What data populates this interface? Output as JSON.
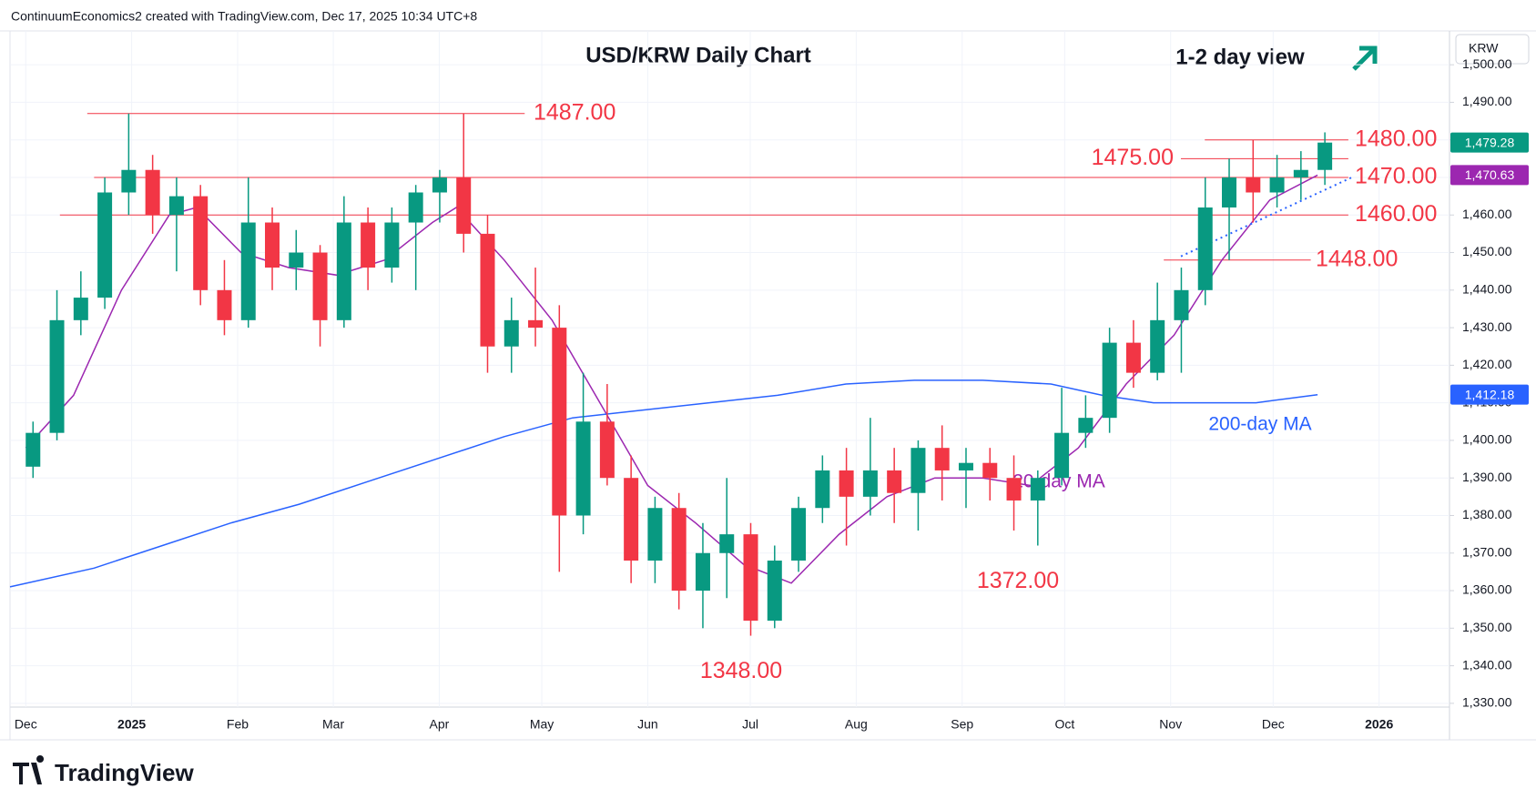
{
  "chart_data": {
    "type": "candlestick",
    "header": "ContinuumEconomics2 created with TradingView.com, Dec 17, 2025 10:34 UTC+8",
    "title": "USD/KRW Daily Chart",
    "view_label": "1-2 day view",
    "currency": "KRW",
    "brand": "TradingView",
    "up_color": "#089981",
    "down_color": "#f23645",
    "grid": true,
    "xlim": [
      -4.6,
      416.6
    ],
    "ylim": [
      1329,
      1509
    ],
    "xticks": [
      {
        "value": 0,
        "label": "Dec"
      },
      {
        "value": 31,
        "label": "2025"
      },
      {
        "value": 62,
        "label": "Feb"
      },
      {
        "value": 90,
        "label": "Mar"
      },
      {
        "value": 121,
        "label": "Apr"
      },
      {
        "value": 151,
        "label": "May"
      },
      {
        "value": 182,
        "label": "Jun"
      },
      {
        "value": 212,
        "label": "Jul"
      },
      {
        "value": 243,
        "label": "Aug"
      },
      {
        "value": 274,
        "label": "Sep"
      },
      {
        "value": 304,
        "label": "Oct"
      },
      {
        "value": 335,
        "label": "Nov"
      },
      {
        "value": 365,
        "label": "Dec"
      },
      {
        "value": 396,
        "label": "2026"
      }
    ],
    "yticks": [
      {
        "value": 1330,
        "label": "1,330.00"
      },
      {
        "value": 1340,
        "label": "1,340.00"
      },
      {
        "value": 1350,
        "label": "1,350.00"
      },
      {
        "value": 1360,
        "label": "1,360.00"
      },
      {
        "value": 1370,
        "label": "1,370.00"
      },
      {
        "value": 1380,
        "label": "1,380.00"
      },
      {
        "value": 1390,
        "label": "1,390.00"
      },
      {
        "value": 1400,
        "label": "1,400.00"
      },
      {
        "value": 1410,
        "label": "1,410.00"
      },
      {
        "value": 1420,
        "label": "1,420.00"
      },
      {
        "value": 1430,
        "label": "1,430.00"
      },
      {
        "value": 1440,
        "label": "1,440.00"
      },
      {
        "value": 1450,
        "label": "1,450.00"
      },
      {
        "value": 1460,
        "label": "1,460.00"
      },
      {
        "value": 1470,
        "label": "1,470.00"
      },
      {
        "value": 1480,
        "label": "1,480.00"
      },
      {
        "value": 1490,
        "label": "1,490.00"
      },
      {
        "value": 1500,
        "label": "1,500.00"
      }
    ],
    "x": [
      0,
      7,
      14,
      21,
      28,
      35,
      42,
      49,
      56,
      63,
      70,
      77,
      84,
      91,
      98,
      105,
      112,
      119,
      126,
      133,
      140,
      147,
      154,
      161,
      168,
      175,
      182,
      189,
      196,
      203,
      210,
      217,
      224,
      231,
      238,
      245,
      252,
      259,
      266,
      273,
      280,
      287,
      294,
      301,
      308,
      315,
      322,
      329,
      336,
      343,
      350,
      357,
      364,
      371,
      378
    ],
    "open": [
      1393,
      1402,
      1432,
      1438,
      1466,
      1472,
      1460,
      1465,
      1440,
      1432,
      1458,
      1446,
      1450,
      1432,
      1458,
      1446,
      1458,
      1466,
      1470,
      1455,
      1425,
      1432,
      1430,
      1380,
      1405,
      1390,
      1368,
      1382,
      1360,
      1370,
      1375,
      1352,
      1368,
      1382,
      1392,
      1385,
      1392,
      1386,
      1398,
      1392,
      1394,
      1390,
      1384,
      1390,
      1402,
      1406,
      1426,
      1418,
      1432,
      1440,
      1462,
      1470,
      1466,
      1470,
      1472
    ],
    "high": [
      1405,
      1440,
      1445,
      1470,
      1487,
      1476,
      1470,
      1468,
      1448,
      1470,
      1462,
      1456,
      1452,
      1465,
      1462,
      1462,
      1468,
      1472,
      1487,
      1460,
      1438,
      1446,
      1436,
      1418,
      1415,
      1396,
      1385,
      1386,
      1378,
      1390,
      1378,
      1372,
      1385,
      1396,
      1398,
      1406,
      1398,
      1400,
      1404,
      1398,
      1398,
      1396,
      1392,
      1414,
      1412,
      1430,
      1432,
      1442,
      1446,
      1470,
      1475,
      1480,
      1476,
      1477,
      1482
    ],
    "low": [
      1390,
      1400,
      1428,
      1435,
      1460,
      1455,
      1445,
      1436,
      1428,
      1430,
      1440,
      1440,
      1425,
      1430,
      1440,
      1442,
      1440,
      1458,
      1450,
      1418,
      1418,
      1425,
      1365,
      1375,
      1388,
      1362,
      1362,
      1355,
      1350,
      1358,
      1348,
      1350,
      1365,
      1378,
      1372,
      1380,
      1378,
      1376,
      1384,
      1382,
      1384,
      1376,
      1372,
      1388,
      1398,
      1402,
      1414,
      1416,
      1418,
      1436,
      1448,
      1458,
      1462,
      1464,
      1468
    ],
    "close": [
      1402,
      1432,
      1438,
      1466,
      1472,
      1460,
      1465,
      1440,
      1432,
      1458,
      1446,
      1450,
      1432,
      1458,
      1446,
      1458,
      1466,
      1470,
      1455,
      1425,
      1432,
      1430,
      1380,
      1405,
      1390,
      1368,
      1382,
      1360,
      1370,
      1375,
      1352,
      1368,
      1382,
      1392,
      1385,
      1392,
      1386,
      1398,
      1392,
      1394,
      1390,
      1384,
      1390,
      1402,
      1406,
      1426,
      1418,
      1432,
      1440,
      1462,
      1470,
      1466,
      1470,
      1472,
      1479.28
    ],
    "lines": [
      {
        "name": "20-day MA",
        "color": "#9c27b0",
        "x": [
          0,
          14,
          28,
          42,
          50,
          63,
          77,
          91,
          105,
          119,
          126,
          140,
          154,
          168,
          182,
          196,
          210,
          224,
          238,
          252,
          266,
          280,
          294,
          308,
          322,
          336,
          350,
          364,
          378
        ],
        "values": [
          1398,
          1412,
          1440,
          1460,
          1462,
          1450,
          1446,
          1444,
          1448,
          1458,
          1462,
          1448,
          1432,
          1410,
          1388,
          1378,
          1367,
          1362,
          1375,
          1385,
          1390,
          1390,
          1388,
          1398,
          1415,
          1428,
          1448,
          1464,
          1470.63
        ]
      },
      {
        "name": "200-day MA",
        "color": "#2962ff",
        "x": [
          -4.6,
          20,
          40,
          60,
          80,
          100,
          120,
          140,
          160,
          180,
          200,
          220,
          240,
          260,
          280,
          300,
          315,
          330,
          345,
          360,
          378
        ],
        "values": [
          1361,
          1366,
          1372,
          1378,
          1383,
          1389,
          1395,
          1401,
          1406,
          1408,
          1410,
          1412,
          1415,
          1416,
          1416,
          1415,
          1412,
          1410,
          1410,
          1410,
          1412.18
        ]
      }
    ],
    "trendline": {
      "color": "#2962ff",
      "x": [
        338,
        388
      ],
      "values": [
        1449,
        1470
      ]
    },
    "levels": [
      {
        "value": 1487,
        "label": "1487.00"
      },
      {
        "value": 1480,
        "label": "1480.00"
      },
      {
        "value": 1475,
        "label": "1475.00"
      },
      {
        "value": 1470,
        "label": "1470.00"
      },
      {
        "value": 1460,
        "label": "1460.00"
      },
      {
        "value": 1448,
        "label": "1448.00"
      }
    ],
    "lows": [
      {
        "value": 1348,
        "label": "1348.00"
      },
      {
        "value": 1372,
        "label": "1372.00"
      }
    ],
    "price_tags": [
      {
        "value": 1479.28,
        "label": "1,479.28",
        "color": "#089981"
      },
      {
        "value": 1470.63,
        "label": "1,470.63",
        "color": "#9c27b0"
      },
      {
        "value": 1412.18,
        "label": "1,412.18",
        "color": "#2962ff"
      }
    ]
  }
}
